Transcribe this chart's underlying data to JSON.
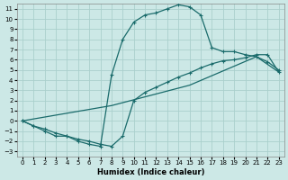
{
  "xlabel": "Humidex (Indice chaleur)",
  "xlim": [
    -0.5,
    23.5
  ],
  "ylim": [
    -3.5,
    11.5
  ],
  "xticks": [
    0,
    1,
    2,
    3,
    4,
    5,
    6,
    7,
    8,
    9,
    10,
    11,
    12,
    13,
    14,
    15,
    16,
    17,
    18,
    19,
    20,
    21,
    22,
    23
  ],
  "yticks": [
    -3,
    -2,
    -1,
    0,
    1,
    2,
    3,
    4,
    5,
    6,
    7,
    8,
    9,
    10,
    11
  ],
  "bg_color": "#cce8e6",
  "grid_color": "#aad0cc",
  "line_color": "#1a6b6b",
  "curve1_x": [
    0,
    1,
    2,
    3,
    4,
    5,
    6,
    7,
    8,
    9,
    10,
    11,
    12,
    13,
    14,
    15,
    16,
    17,
    18,
    19,
    20,
    21,
    22,
    23
  ],
  "curve1_y": [
    0,
    -0.5,
    -1.0,
    -1.5,
    -1.5,
    -2.0,
    -2.3,
    -2.5,
    4.5,
    8.0,
    9.7,
    10.4,
    10.6,
    11.0,
    11.4,
    11.2,
    10.4,
    7.2,
    6.8,
    6.8,
    6.5,
    6.3,
    5.8,
    5.0
  ],
  "curve2_x": [
    0,
    1,
    2,
    3,
    4,
    5,
    6,
    7,
    8,
    9,
    10,
    11,
    12,
    13,
    14,
    15,
    16,
    17,
    18,
    19,
    20,
    21,
    22,
    23
  ],
  "curve2_y": [
    0,
    -0.5,
    -0.8,
    -1.2,
    -1.5,
    -1.8,
    -2.0,
    -2.3,
    -2.5,
    -1.5,
    2.0,
    2.8,
    3.3,
    3.8,
    4.3,
    4.7,
    5.2,
    5.6,
    5.9,
    6.0,
    6.2,
    6.5,
    6.5,
    4.8
  ],
  "curve3_x": [
    0,
    8,
    15,
    21,
    23
  ],
  "curve3_y": [
    0,
    1.5,
    3.5,
    6.3,
    4.8
  ]
}
